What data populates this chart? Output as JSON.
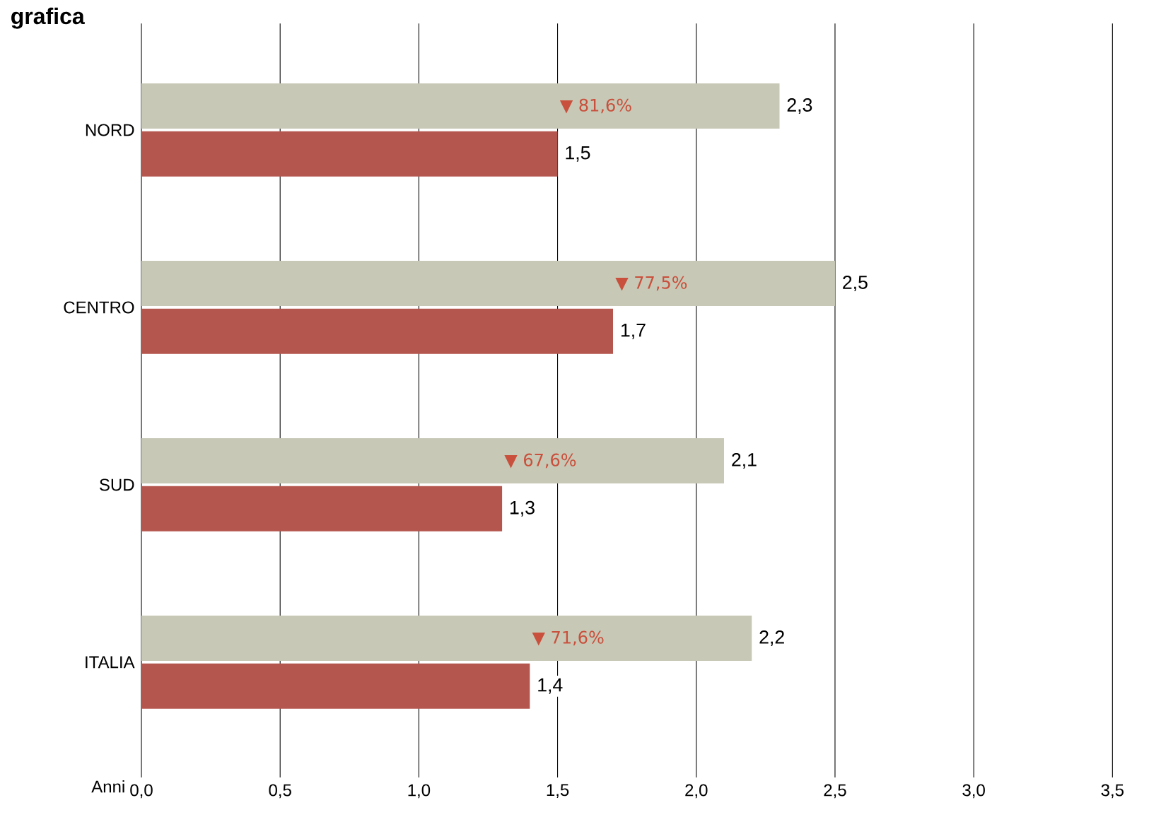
{
  "chart_data": {
    "type": "bar",
    "orientation": "horizontal",
    "title": "grafica",
    "xlabel": "Anni",
    "categories": [
      "NORD",
      "CENTRO",
      "SUD",
      "ITALIA"
    ],
    "series": [
      {
        "color": "#c8c8b6",
        "values": [
          2.3,
          2.5,
          2.1,
          2.2
        ],
        "value_labels": [
          "2,3",
          "2,5",
          "2,1",
          "2,2"
        ]
      },
      {
        "color": "#b5564e",
        "values": [
          1.5,
          1.7,
          1.3,
          1.4
        ],
        "value_labels": [
          "1,5",
          "1,7",
          "1,3",
          "1,4"
        ]
      }
    ],
    "annotations": [
      "▼ 81,6%",
      "▼ 77,5%",
      "▼ 67,6%",
      "▼ 71,6%"
    ],
    "xlim": [
      0,
      3.5
    ],
    "xticks": [
      {
        "value": 0,
        "label": "0,0"
      },
      {
        "value": 0.5,
        "label": "0,5"
      },
      {
        "value": 1,
        "label": "1,0"
      },
      {
        "value": 1.5,
        "label": "1,5"
      },
      {
        "value": 2,
        "label": "2,0"
      },
      {
        "value": 2.5,
        "label": "2,5"
      },
      {
        "value": 3,
        "label": "3,0"
      },
      {
        "value": 3.5,
        "label": "3,5"
      }
    ],
    "grid": "x"
  }
}
